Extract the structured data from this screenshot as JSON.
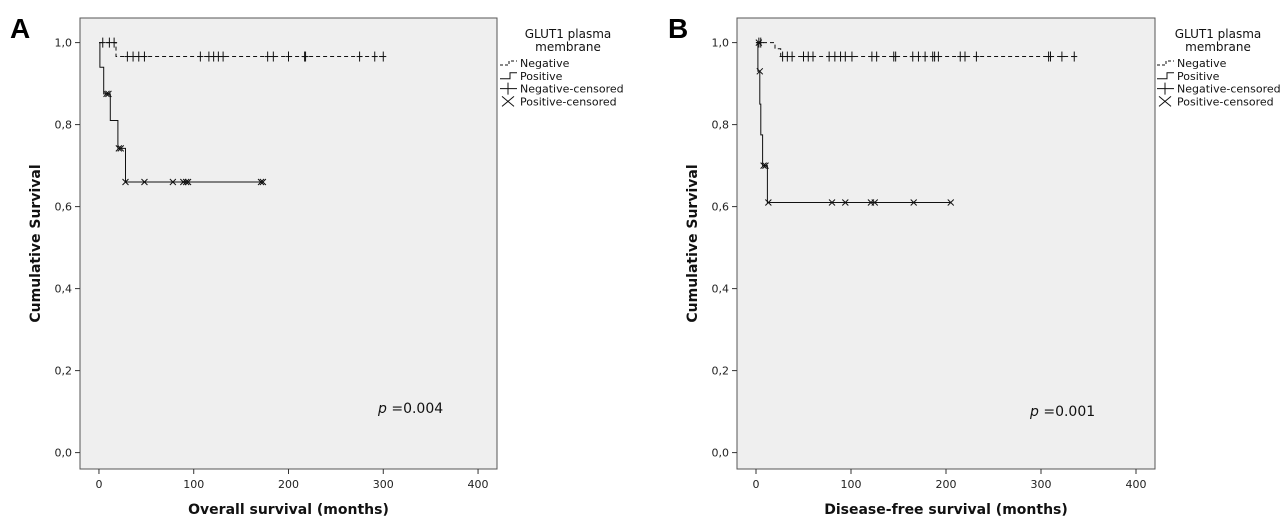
{
  "chart_data": [
    {
      "type": "line",
      "panel_label": "A",
      "xlabel": "Overall survival (months)",
      "ylabel": "Cumulative Survival",
      "xlim": [
        -20,
        420
      ],
      "ylim": [
        -0.04,
        1.06
      ],
      "x_ticks": [
        0,
        100,
        200,
        300,
        400
      ],
      "x_tick_labels": [
        "0",
        "100",
        "200",
        "300",
        "400"
      ],
      "y_ticks": [
        0,
        0.2,
        0.4,
        0.6,
        0.8,
        1.0
      ],
      "y_tick_labels": [
        "0,0",
        "0,2",
        "0,4",
        "0,6",
        "0,8",
        "1,0"
      ],
      "legend": {
        "title": "GLUT1 plasma membrane",
        "position": "top-right outside",
        "items": [
          "Negative",
          "Positive",
          "Negative-censored",
          "Positive-censored"
        ]
      },
      "annotation": {
        "p_label": "p",
        "p_text": " =0.004"
      },
      "series": [
        {
          "name": "Negative",
          "style": "dashed",
          "steps": [
            [
              0,
              1.0
            ],
            [
              18,
              1.0
            ],
            [
              18,
              0.966
            ],
            [
              300,
              0.966
            ]
          ],
          "censored": [
            [
              4,
              1.0
            ],
            [
              11,
              1.0
            ],
            [
              16,
              1.0
            ],
            [
              30,
              0.966
            ],
            [
              36,
              0.966
            ],
            [
              42,
              0.966
            ],
            [
              48,
              0.966
            ],
            [
              107,
              0.966
            ],
            [
              116,
              0.966
            ],
            [
              121,
              0.966
            ],
            [
              126,
              0.966
            ],
            [
              131,
              0.966
            ],
            [
              178,
              0.966
            ],
            [
              184,
              0.966
            ],
            [
              200,
              0.966
            ],
            [
              217,
              0.966
            ],
            [
              218,
              0.966
            ],
            [
              275,
              0.966
            ],
            [
              291,
              0.966
            ],
            [
              300,
              0.966
            ]
          ]
        },
        {
          "name": "Positive",
          "style": "solid",
          "steps": [
            [
              0,
              1.0
            ],
            [
              1,
              1.0
            ],
            [
              1,
              0.94
            ],
            [
              5,
              0.94
            ],
            [
              5,
              0.875
            ],
            [
              12,
              0.875
            ],
            [
              12,
              0.81
            ],
            [
              20,
              0.81
            ],
            [
              20,
              0.742
            ],
            [
              28,
              0.742
            ],
            [
              28,
              0.66
            ],
            [
              172,
              0.66
            ]
          ],
          "censored": [
            [
              8,
              0.875
            ],
            [
              10,
              0.875
            ],
            [
              21,
              0.742
            ],
            [
              23,
              0.742
            ],
            [
              28,
              0.66
            ],
            [
              48,
              0.66
            ],
            [
              78,
              0.66
            ],
            [
              89,
              0.66
            ],
            [
              92,
              0.66
            ],
            [
              94,
              0.66
            ],
            [
              171,
              0.66
            ],
            [
              173,
              0.66
            ]
          ]
        }
      ]
    },
    {
      "type": "line",
      "panel_label": "B",
      "xlabel": "Disease-free survival (months)",
      "ylabel": "Cumulative Survival",
      "xlim": [
        -20,
        420
      ],
      "ylim": [
        -0.04,
        1.06
      ],
      "x_ticks": [
        0,
        100,
        200,
        300,
        400
      ],
      "x_tick_labels": [
        "0",
        "100",
        "200",
        "300",
        "400"
      ],
      "y_ticks": [
        0,
        0.2,
        0.4,
        0.6,
        0.8,
        1.0
      ],
      "y_tick_labels": [
        "0,0",
        "0,2",
        "0,4",
        "0,6",
        "0,8",
        "1,0"
      ],
      "legend": {
        "title": "GLUT1 plasma membrane",
        "position": "top-right outside",
        "items": [
          "Negative",
          "Positive",
          "Negative-censored",
          "Positive-censored"
        ]
      },
      "annotation": {
        "p_label": "p",
        "p_text": " =0.001"
      },
      "series": [
        {
          "name": "Negative",
          "style": "dashed",
          "steps": [
            [
              0,
              1.0
            ],
            [
              20,
              1.0
            ],
            [
              20,
              0.985
            ],
            [
              26,
              0.985
            ],
            [
              26,
              0.966
            ],
            [
              335,
              0.966
            ]
          ],
          "censored": [
            [
              3,
              1.0
            ],
            [
              5,
              1.0
            ],
            [
              28,
              0.966
            ],
            [
              33,
              0.966
            ],
            [
              38,
              0.966
            ],
            [
              50,
              0.966
            ],
            [
              55,
              0.966
            ],
            [
              60,
              0.966
            ],
            [
              77,
              0.966
            ],
            [
              83,
              0.966
            ],
            [
              89,
              0.966
            ],
            [
              94,
              0.966
            ],
            [
              101,
              0.966
            ],
            [
              122,
              0.966
            ],
            [
              127,
              0.966
            ],
            [
              145,
              0.966
            ],
            [
              147,
              0.966
            ],
            [
              165,
              0.966
            ],
            [
              171,
              0.966
            ],
            [
              178,
              0.966
            ],
            [
              186,
              0.966
            ],
            [
              188,
              0.966
            ],
            [
              192,
              0.966
            ],
            [
              215,
              0.966
            ],
            [
              220,
              0.966
            ],
            [
              232,
              0.966
            ],
            [
              308,
              0.966
            ],
            [
              310,
              0.966
            ],
            [
              322,
              0.966
            ],
            [
              335,
              0.966
            ]
          ]
        },
        {
          "name": "Positive",
          "style": "solid",
          "steps": [
            [
              0,
              1.0
            ],
            [
              2,
              1.0
            ],
            [
              2,
              0.93
            ],
            [
              4,
              0.93
            ],
            [
              4,
              0.85
            ],
            [
              5,
              0.85
            ],
            [
              5,
              0.775
            ],
            [
              7,
              0.775
            ],
            [
              7,
              0.7
            ],
            [
              12,
              0.7
            ],
            [
              12,
              0.61
            ],
            [
              205,
              0.61
            ]
          ],
          "censored": [
            [
              3,
              1.0
            ],
            [
              4,
              0.93
            ],
            [
              8,
              0.7
            ],
            [
              10,
              0.7
            ],
            [
              13,
              0.61
            ],
            [
              80,
              0.61
            ],
            [
              94,
              0.61
            ],
            [
              121,
              0.61
            ],
            [
              125,
              0.61
            ],
            [
              166,
              0.61
            ],
            [
              205,
              0.61
            ]
          ]
        }
      ]
    }
  ]
}
